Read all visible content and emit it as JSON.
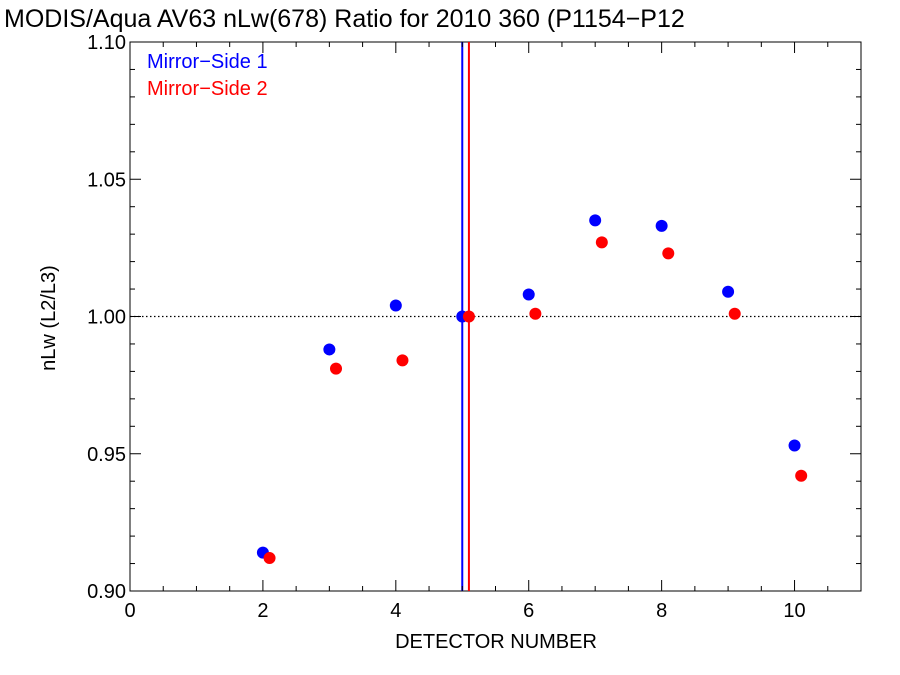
{
  "chart_data": {
    "type": "scatter",
    "title": "MODIS/Aqua AV63 nLw(678) Ratio for 2010 360 (P1154−P12",
    "xlabel": "DETECTOR NUMBER",
    "ylabel": "nLw (L2/L3)",
    "xlim": [
      0,
      11
    ],
    "ylim": [
      0.9,
      1.1
    ],
    "x_ticks": [
      0,
      2,
      4,
      6,
      8,
      10
    ],
    "x_tick_labels": [
      "0",
      "2",
      "4",
      "6",
      "8",
      "10"
    ],
    "y_ticks": [
      0.9,
      0.95,
      1.0,
      1.05,
      1.1
    ],
    "y_tick_labels": [
      "0.90",
      "0.95",
      "1.00",
      "1.05",
      "1.10"
    ],
    "reference_line": {
      "y": 1.0,
      "style": "dotted"
    },
    "vertical_lines": [
      {
        "x": 5.0,
        "color": "#0000ff"
      },
      {
        "x": 5.1,
        "color": "#ff0000"
      }
    ],
    "legend_position": "top-left",
    "grid": false,
    "series": [
      {
        "name": "Mirror−Side 1",
        "color": "#0000ff",
        "x": [
          2,
          3,
          4,
          5,
          6,
          7,
          8,
          9,
          10
        ],
        "values": [
          0.914,
          0.988,
          1.004,
          1.0,
          1.008,
          1.035,
          1.033,
          1.009,
          0.953
        ]
      },
      {
        "name": "Mirror−Side 2",
        "color": "#ff0000",
        "x": [
          2.1,
          3.1,
          4.1,
          5.1,
          6.1,
          7.1,
          8.1,
          9.1,
          10.1
        ],
        "values": [
          0.912,
          0.981,
          0.984,
          1.0,
          1.001,
          1.027,
          1.023,
          1.001,
          0.942
        ]
      }
    ]
  }
}
